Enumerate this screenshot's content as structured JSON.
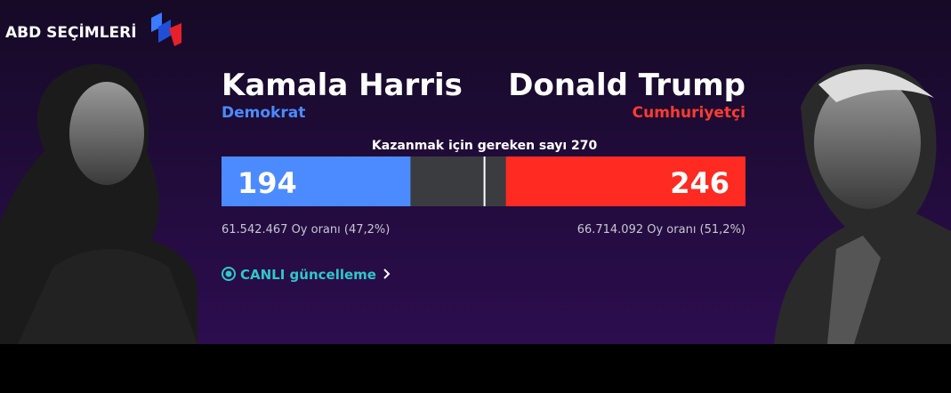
{
  "header": {
    "title": "ABD SEÇİMLERİ"
  },
  "chart_data": {
    "type": "bar",
    "threshold": {
      "value": 270,
      "label": "Kazanmak için gereken sayı 270"
    },
    "xlim": [
      0,
      538
    ],
    "track_color": "#3b3c3f",
    "series": [
      {
        "name": "Kamala Harris",
        "party": "Demokrat",
        "color": "#4b8bff",
        "party_color": "#4b8bff",
        "values": [
          194
        ],
        "popular_vote": "61.542.467 Oy oranı (47,2%)"
      },
      {
        "name": "Donald Trump",
        "party": "Cumhuriyetçi",
        "color": "#ff2b22",
        "party_color": "#ff3b30",
        "values": [
          246
        ],
        "popular_vote": "66.714.092 Oy oranı (51,2%)"
      }
    ]
  },
  "live_link": "CANLI güncelleme"
}
